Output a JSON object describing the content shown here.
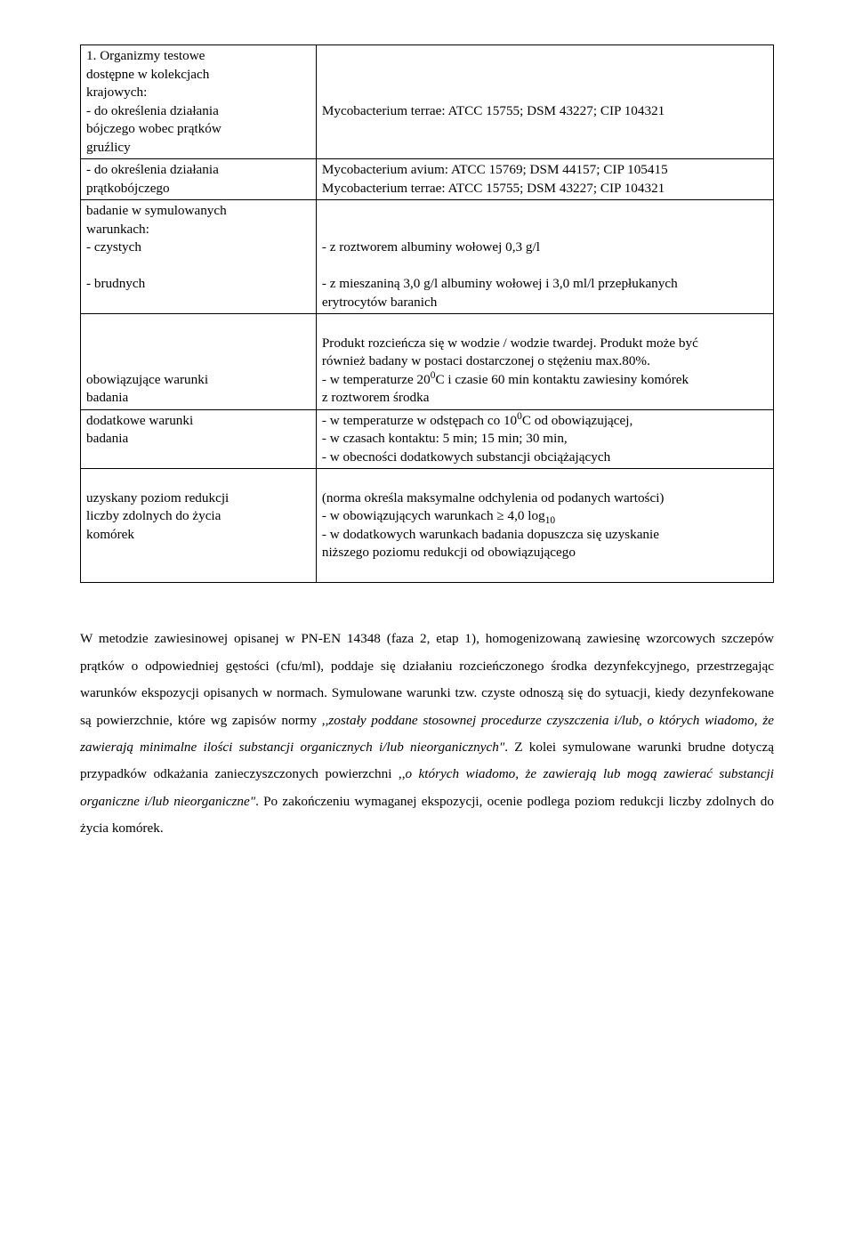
{
  "table": {
    "cells": {
      "r1c1": "1. Organizmy testowe\ndostępne w kolekcjach\nkrajowych:\n- do określenia działania\nbójczego wobec prątków\ngruźlicy",
      "r1c2": "Mycobacterium terrae: ATCC 15755; DSM 43227; CIP 104321",
      "r2c1": "- do określenia działania\nprątkobójczego",
      "r2c2": "Mycobacterium avium: ATCC 15769; DSM 44157; CIP 105415\nMycobacterium terrae: ATCC 15755; DSM 43227; CIP 104321",
      "r3c1": "badanie w symulowanych\nwarunkach:\n- czystych\n\n- brudnych",
      "r3c2_a": "- z roztworem albuminy wołowej 0,3 g/l",
      "r3c2_b": "- z mieszaniną 3,0 g/l albuminy wołowej i 3,0 ml/l  przepłukanych\nerytrocytów baranich",
      "r4c1": "obowiązujące warunki\nbadania",
      "r4c2_a": "Produkt rozcieńcza się w wodzie / wodzie twardej. Produkt może być\nrównież badany w postaci dostarczonej o stężeniu max.80%.",
      "r4c2_b1": "- w temperaturze 20",
      "r4c2_b_sup": "0",
      "r4c2_b2": "C i czasie 60 min kontaktu zawiesiny komórek\n  z roztworem środka",
      "r5c1": "dodatkowe warunki\nbadania",
      "r5c2_a1": "- w temperaturze w odstępach co 10",
      "r5c2_a_sup": "0",
      "r5c2_a2": "C od obowiązującej,",
      "r5c2_b": "- w czasach kontaktu: 5 min; 15 min; 30 min,",
      "r5c2_c": "- w obecności dodatkowych substancji obciążających",
      "r6c1": "uzyskany poziom redukcji\nliczby zdolnych do życia\nkomórek",
      "r6c2_a": "(norma określa maksymalne odchylenia od podanych wartości)",
      "r6c2_b1": "- w obowiązujących warunkach ≥ 4,0 log",
      "r6c2_b_sub": "10",
      "r6c2_c": "- w dodatkowych warunkach badania dopuszcza się uzyskanie\nniższego poziomu redukcji od obowiązującego"
    }
  },
  "paragraph": {
    "p1": "W metodzie zawiesinowej opisanej w PN-EN 14348 (faza 2, etap 1), homogenizowaną zawiesinę wzorcowych szczepów prątków o odpowiedniej gęstości (cfu/ml), poddaje się działaniu rozcieńczonego środka dezynfekcyjnego, przestrzegając warunków ekspozycji opisanych w normach. Symulowane warunki tzw. czyste odnoszą się do sytuacji, kiedy dezynfekowane są powierzchnie, które wg zapisów normy ,,",
    "i1": "zostały poddane stosownej procedurze czyszczenia i/lub, o których wiadomo, że zawierają minimalne ilości substancji organicznych i/lub nieorganicznych\"",
    "p2": ". Z kolei symulowane warunki brudne dotyczą przypadków odkażania zanieczyszczonych powierzchni ,,",
    "i2": "o których wiadomo, że zawierają lub mogą zawierać substancji organiczne i/lub nieorganiczne\"",
    "p3": ". Po zakończeniu wymaganej ekspozycji, ocenie podlega poziom redukcji liczby zdolnych do życia komórek."
  }
}
